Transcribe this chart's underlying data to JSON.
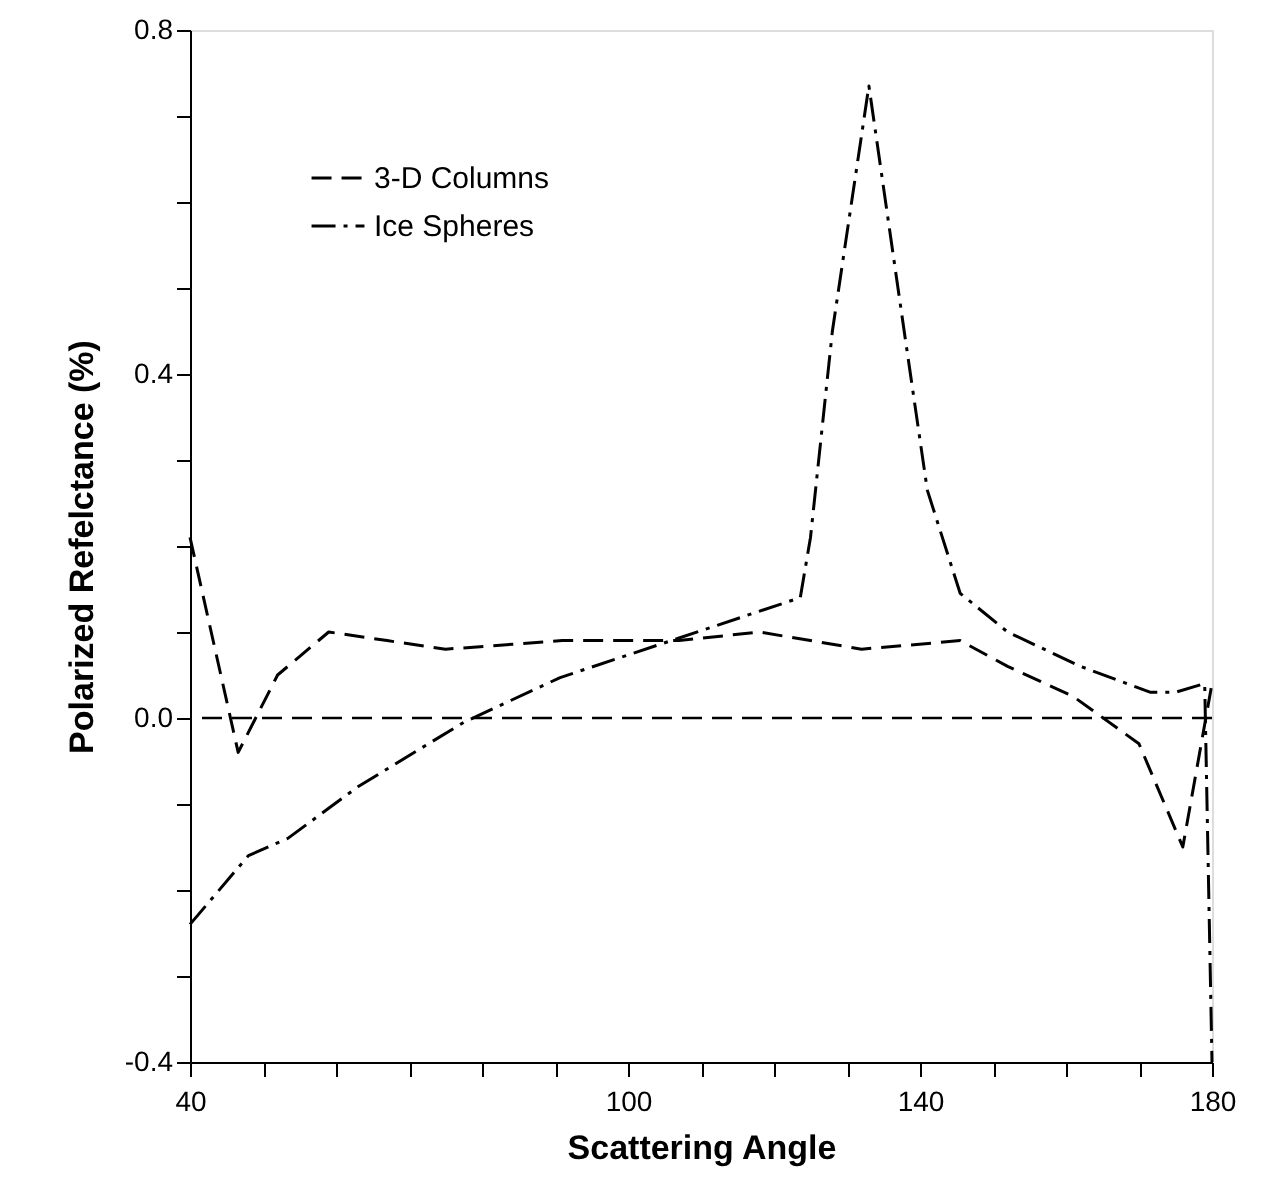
{
  "chart_data": {
    "type": "line",
    "xlabel": "Scattering Angle",
    "ylabel": "Polarized Refelctance (%)",
    "xlim": [
      40,
      180
    ],
    "xticks": [
      40,
      {
        "value": 50,
        "label": null
      },
      {
        "value": 60,
        "label": null
      },
      {
        "value": 70,
        "label": null
      },
      {
        "value": 80,
        "label": null
      },
      {
        "value": 90,
        "label": null
      },
      100,
      {
        "value": 110,
        "label": null
      },
      {
        "value": 120,
        "label": null
      },
      {
        "value": 130,
        "label": null
      },
      140,
      {
        "value": 150,
        "label": null
      },
      {
        "value": 160,
        "label": null
      },
      {
        "value": 170,
        "label": null
      },
      180
    ],
    "ylim": [
      -0.4,
      0.8
    ],
    "yticks": [
      {
        "value": -0.4,
        "label": "-0.4"
      },
      {
        "value": -0.3,
        "label": null
      },
      {
        "value": -0.2,
        "label": null
      },
      {
        "value": -0.1,
        "label": null
      },
      {
        "value": 0,
        "label": "0.0"
      },
      {
        "value": 0.1,
        "label": null
      },
      {
        "value": 0.2,
        "label": null
      },
      {
        "value": 0.3,
        "label": null
      },
      {
        "value": 0.4,
        "label": "0.4"
      },
      {
        "value": 0.5,
        "label": null
      },
      {
        "value": 0.6,
        "label": null
      },
      {
        "value": 0.7,
        "label": null
      },
      {
        "value": 0.8,
        "label": "0.8"
      }
    ],
    "grid": false,
    "legend": "top left",
    "marker": "none",
    "ref_lines": [
      {
        "axis": "y",
        "value": 0,
        "color": "#000000",
        "line_style": "dashed"
      }
    ],
    "series": [
      {
        "name": "3-D Columns",
        "color": "#000000",
        "line_style": "dashed",
        "x": [
          40,
          46.6,
          52,
          59,
          67,
          75,
          91,
          107,
          118,
          132,
          145.5,
          152,
          161,
          170,
          176,
          180
        ],
        "values": [
          0.21,
          -0.04,
          0.05,
          0.1,
          0.09,
          0.08,
          0.09,
          0.09,
          0.1,
          0.08,
          0.09,
          0.06,
          0.025,
          -0.03,
          -0.15,
          0.04
        ]
      },
      {
        "name": "Ice Spheres",
        "color": "#000000",
        "line_style": "dashdot",
        "x": [
          40,
          48,
          53.4,
          63,
          77.5,
          90.7,
          107,
          123.6,
          125,
          128,
          133,
          138,
          141,
          145.5,
          152,
          162,
          171.5,
          175,
          179,
          180
        ],
        "values": [
          -0.24,
          -0.16,
          -0.14,
          -0.08,
          -0.005,
          0.047,
          0.093,
          0.14,
          0.21,
          0.45,
          0.735,
          0.44,
          0.265,
          0.145,
          0.1,
          0.06,
          0.03,
          0.03,
          0.04,
          -0.4
        ]
      }
    ]
  }
}
